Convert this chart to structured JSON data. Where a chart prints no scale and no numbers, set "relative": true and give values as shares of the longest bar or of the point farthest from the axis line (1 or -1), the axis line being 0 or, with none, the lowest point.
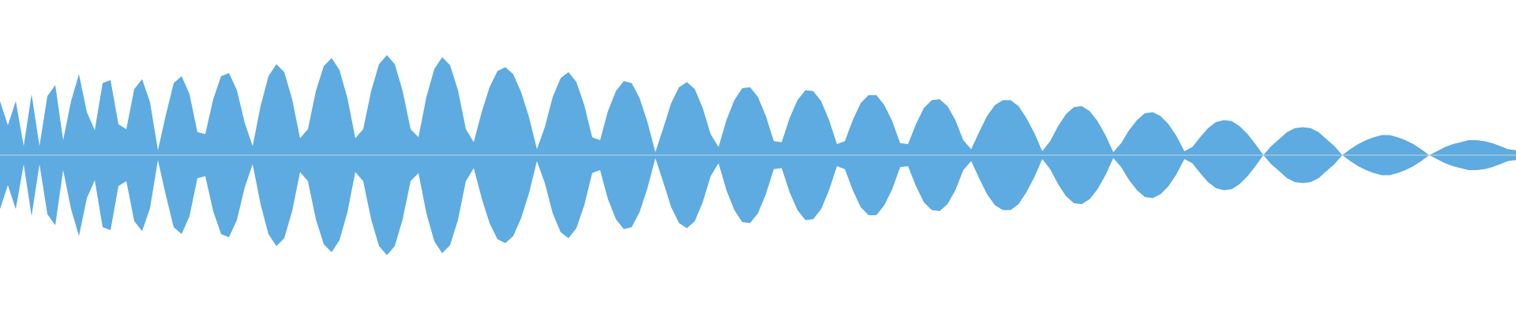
{
  "chart_data": {
    "type": "area",
    "relative": true,
    "categories": [
      null,
      null,
      null,
      null,
      null,
      null,
      null,
      null,
      null,
      null,
      null,
      null,
      null,
      null,
      null,
      null,
      null,
      null,
      null,
      null,
      null,
      null,
      null,
      null,
      null,
      null,
      null,
      null,
      null,
      null,
      null,
      null,
      null,
      null,
      null,
      null,
      null,
      null,
      null,
      null,
      null,
      null,
      null,
      null,
      null,
      null,
      null,
      null,
      null,
      null,
      null,
      null,
      null,
      null,
      null,
      null,
      null,
      null,
      null,
      null,
      null,
      null,
      null,
      null,
      null,
      null,
      null,
      null,
      null,
      null,
      null,
      null,
      null,
      null,
      null,
      null,
      null,
      null,
      null,
      null,
      null,
      null,
      null,
      null,
      null,
      null,
      null,
      null,
      null,
      null,
      null,
      null,
      null,
      null,
      null,
      null,
      null,
      null,
      null,
      null,
      null,
      null,
      null,
      null,
      null,
      null,
      null,
      null,
      null,
      null,
      null,
      null,
      null,
      null,
      null,
      null,
      null,
      null,
      null,
      null,
      null,
      null,
      null,
      null,
      null,
      null,
      null,
      null,
      null,
      null,
      null,
      null,
      null,
      null,
      null,
      null,
      null,
      null,
      null,
      null,
      null,
      null,
      null,
      null,
      null,
      null,
      null,
      null,
      null,
      null,
      null,
      null,
      null,
      null,
      null,
      null,
      null,
      null,
      null,
      null,
      null,
      null,
      null,
      null,
      null,
      null,
      null,
      null,
      null,
      null,
      null,
      null,
      null,
      null,
      null,
      null,
      null,
      null,
      null,
      null,
      null,
      null,
      null,
      null,
      null,
      null,
      null,
      null,
      null,
      null,
      null,
      null,
      null
    ],
    "series": [
      {
        "color": "#5dabe1",
        "values": [
          0.54,
          0.3,
          0.54,
          0.09,
          0.61,
          0.09,
          0.59,
          0.7,
          0.15,
          0.54,
          0.81,
          0.43,
          0.25,
          0.72,
          0.75,
          0.31,
          0.26,
          0.66,
          0.76,
          0.53,
          0.05,
          0.4,
          0.72,
          0.79,
          0.61,
          0.23,
          0.21,
          0.56,
          0.79,
          0.82,
          0.65,
          0.32,
          0.09,
          0.49,
          0.79,
          0.91,
          0.83,
          0.56,
          0.17,
          0.26,
          0.64,
          0.89,
          0.97,
          0.85,
          0.57,
          0.17,
          0.26,
          0.64,
          0.91,
          1,
          0.91,
          0.64,
          0.26,
          0.18,
          0.58,
          0.86,
          0.98,
          0.9,
          0.65,
          0.26,
          0.13,
          0.43,
          0.68,
          0.84,
          0.88,
          0.81,
          0.63,
          0.38,
          0.06,
          0.28,
          0.58,
          0.77,
          0.83,
          0.73,
          0.5,
          0.18,
          0.15,
          0.44,
          0.64,
          0.74,
          0.72,
          0.57,
          0.33,
          0.03,
          0.27,
          0.52,
          0.68,
          0.73,
          0.66,
          0.47,
          0.21,
          0.08,
          0.35,
          0.55,
          0.67,
          0.68,
          0.58,
          0.39,
          0.14,
          0.13,
          0.37,
          0.55,
          0.65,
          0.64,
          0.54,
          0.35,
          0.11,
          0.14,
          0.35,
          0.52,
          0.6,
          0.6,
          0.5,
          0.34,
          0.12,
          0.11,
          0.31,
          0.47,
          0.55,
          0.56,
          0.49,
          0.35,
          0.15,
          0.06,
          0.23,
          0.39,
          0.5,
          0.55,
          0.55,
          0.49,
          0.37,
          0.22,
          0.04,
          0.14,
          0.29,
          0.41,
          0.48,
          0.49,
          0.44,
          0.34,
          0.2,
          0.03,
          0.12,
          0.25,
          0.35,
          0.42,
          0.43,
          0.39,
          0.31,
          0.19,
          0.04,
          0.08,
          0.18,
          0.27,
          0.33,
          0.35,
          0.34,
          0.29,
          0.21,
          0.11,
          0,
          0.09,
          0.16,
          0.23,
          0.27,
          0.28,
          0.27,
          0.23,
          0.16,
          0.09,
          0,
          0.06,
          0.11,
          0.15,
          0.18,
          0.2,
          0.2,
          0.18,
          0.15,
          0.11,
          0.06,
          0,
          0.04,
          0.08,
          0.11,
          0.13,
          0.15,
          0.15,
          0.14,
          0.12,
          0.09,
          0.06,
          0.05
        ]
      },
      {
        "color": "#5dabe1",
        "values": [
          -0.54,
          -0.3,
          -0.54,
          -0.09,
          -0.61,
          -0.09,
          -0.59,
          -0.7,
          -0.15,
          -0.54,
          -0.81,
          -0.43,
          -0.25,
          -0.72,
          -0.75,
          -0.31,
          -0.26,
          -0.66,
          -0.76,
          -0.53,
          -0.05,
          -0.4,
          -0.72,
          -0.79,
          -0.61,
          -0.23,
          -0.21,
          -0.56,
          -0.79,
          -0.82,
          -0.65,
          -0.32,
          -0.09,
          -0.49,
          -0.79,
          -0.91,
          -0.83,
          -0.56,
          -0.17,
          -0.26,
          -0.64,
          -0.89,
          -0.97,
          -0.85,
          -0.57,
          -0.17,
          -0.26,
          -0.64,
          -0.91,
          -1,
          -0.91,
          -0.64,
          -0.26,
          -0.18,
          -0.58,
          -0.86,
          -0.98,
          -0.9,
          -0.65,
          -0.26,
          -0.13,
          -0.43,
          -0.68,
          -0.84,
          -0.88,
          -0.81,
          -0.63,
          -0.38,
          -0.06,
          -0.28,
          -0.58,
          -0.77,
          -0.83,
          -0.73,
          -0.5,
          -0.18,
          -0.15,
          -0.44,
          -0.64,
          -0.74,
          -0.72,
          -0.57,
          -0.33,
          -0.03,
          -0.27,
          -0.52,
          -0.68,
          -0.73,
          -0.66,
          -0.47,
          -0.21,
          -0.08,
          -0.35,
          -0.55,
          -0.67,
          -0.68,
          -0.58,
          -0.39,
          -0.14,
          -0.13,
          -0.37,
          -0.55,
          -0.65,
          -0.64,
          -0.54,
          -0.35,
          -0.11,
          -0.14,
          -0.35,
          -0.52,
          -0.6,
          -0.6,
          -0.5,
          -0.34,
          -0.12,
          -0.11,
          -0.31,
          -0.47,
          -0.55,
          -0.56,
          -0.49,
          -0.35,
          -0.15,
          -0.06,
          -0.23,
          -0.39,
          -0.5,
          -0.55,
          -0.55,
          -0.49,
          -0.37,
          -0.22,
          -0.04,
          -0.14,
          -0.29,
          -0.41,
          -0.48,
          -0.49,
          -0.44,
          -0.34,
          -0.2,
          -0.03,
          -0.12,
          -0.25,
          -0.35,
          -0.42,
          -0.43,
          -0.39,
          -0.31,
          -0.19,
          -0.04,
          -0.08,
          -0.18,
          -0.27,
          -0.33,
          -0.35,
          -0.34,
          -0.29,
          -0.21,
          -0.11,
          0,
          -0.09,
          -0.16,
          -0.23,
          -0.27,
          -0.28,
          -0.27,
          -0.23,
          -0.16,
          -0.09,
          0,
          -0.06,
          -0.11,
          -0.15,
          -0.18,
          -0.2,
          -0.2,
          -0.18,
          -0.15,
          -0.11,
          -0.06,
          0,
          -0.04,
          -0.08,
          -0.11,
          -0.13,
          -0.15,
          -0.15,
          -0.14,
          -0.12,
          -0.09,
          -0.06,
          -0.05
        ]
      }
    ]
  }
}
